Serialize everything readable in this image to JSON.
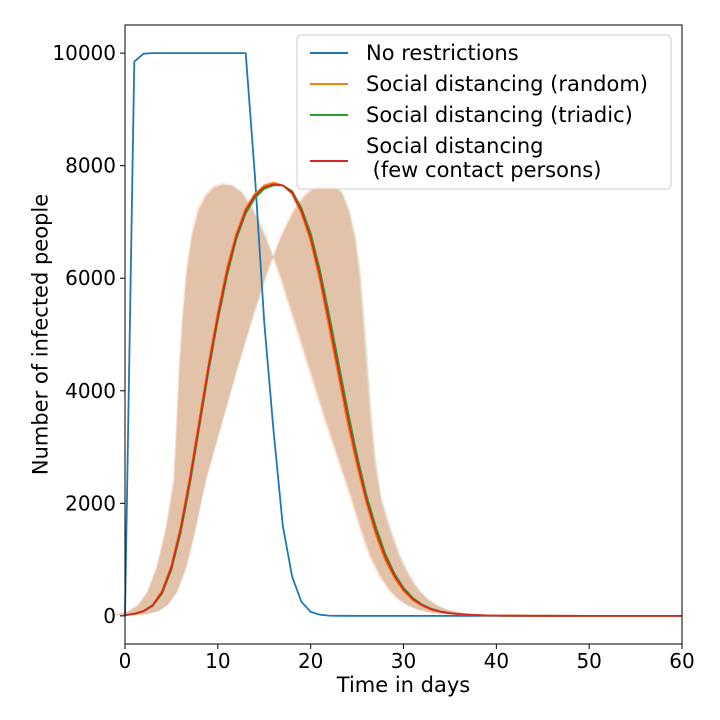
{
  "chart_data": {
    "type": "line",
    "title": "",
    "xlabel": "Time in days",
    "ylabel": "Number of infected people",
    "xlim": [
      0,
      60
    ],
    "ylim": [
      -500,
      10500
    ],
    "xticks": [
      0,
      10,
      20,
      30,
      40,
      50,
      60
    ],
    "yticks": [
      0,
      2000,
      4000,
      6000,
      8000,
      10000
    ],
    "grid": false,
    "legend_position": "top-right",
    "colors": {
      "no_restrictions": "#1f77b4",
      "random": "#ff7f0e",
      "triadic": "#2ca02c",
      "few_contacts": "#d62728"
    },
    "series": [
      {
        "name": "No restrictions",
        "color": "#1f77b4",
        "x": [
          0,
          1,
          2,
          3,
          4,
          5,
          6,
          7,
          8,
          9,
          10,
          11,
          12,
          13,
          14,
          15,
          16,
          17,
          18,
          19,
          20,
          21,
          22,
          23,
          24,
          25,
          30,
          40,
          50,
          60
        ],
        "values": [
          0,
          9850,
          9990,
          10000,
          10000,
          10000,
          10000,
          10000,
          10000,
          10000,
          10000,
          10000,
          10000,
          10000,
          7800,
          5200,
          3300,
          1600,
          700,
          250,
          70,
          20,
          5,
          2,
          1,
          0,
          0,
          0,
          0,
          0
        ]
      },
      {
        "name": "Social distancing (random)",
        "color": "#ff7f0e",
        "x": [
          0,
          1,
          2,
          3,
          4,
          5,
          6,
          7,
          8,
          9,
          10,
          11,
          12,
          13,
          14,
          15,
          16,
          17,
          18,
          19,
          20,
          21,
          22,
          23,
          24,
          25,
          26,
          27,
          28,
          29,
          30,
          31,
          32,
          33,
          34,
          35,
          36,
          37,
          38,
          39,
          40,
          42,
          44,
          46,
          50,
          55,
          60
        ],
        "values": [
          10,
          40,
          90,
          200,
          450,
          900,
          1600,
          2500,
          3500,
          4500,
          5400,
          6200,
          6800,
          7250,
          7500,
          7650,
          7700,
          7650,
          7500,
          7150,
          6650,
          5950,
          5100,
          4250,
          3400,
          2650,
          2000,
          1450,
          1000,
          680,
          440,
          280,
          180,
          110,
          70,
          45,
          30,
          18,
          12,
          8,
          5,
          3,
          2,
          1,
          0,
          0,
          0
        ]
      },
      {
        "name": "Social distancing (triadic)",
        "color": "#2ca02c",
        "x": [
          0,
          1,
          2,
          3,
          4,
          5,
          6,
          7,
          8,
          9,
          10,
          11,
          12,
          13,
          14,
          15,
          16,
          17,
          18,
          19,
          20,
          21,
          22,
          23,
          24,
          25,
          26,
          27,
          28,
          29,
          30,
          31,
          32,
          33,
          34,
          35,
          36,
          37,
          38,
          39,
          40,
          42,
          44,
          46,
          50,
          55,
          60
        ],
        "values": [
          10,
          35,
          80,
          180,
          400,
          820,
          1480,
          2350,
          3350,
          4350,
          5250,
          6050,
          6700,
          7150,
          7430,
          7590,
          7650,
          7650,
          7550,
          7250,
          6800,
          6150,
          5350,
          4500,
          3650,
          2850,
          2150,
          1600,
          1120,
          760,
          500,
          320,
          200,
          125,
          78,
          50,
          32,
          20,
          13,
          8,
          5,
          3,
          2,
          1,
          0,
          0,
          0
        ]
      },
      {
        "name": "Social distancing\n (few contact persons)",
        "color": "#d62728",
        "x": [
          0,
          1,
          2,
          3,
          4,
          5,
          6,
          7,
          8,
          9,
          10,
          11,
          12,
          13,
          14,
          15,
          16,
          17,
          18,
          19,
          20,
          21,
          22,
          23,
          24,
          25,
          26,
          27,
          28,
          29,
          30,
          31,
          32,
          33,
          34,
          35,
          36,
          37,
          38,
          39,
          40,
          42,
          44,
          46,
          50,
          55,
          60
        ],
        "values": [
          10,
          38,
          85,
          190,
          420,
          860,
          1540,
          2420,
          3420,
          4420,
          5320,
          6120,
          6750,
          7200,
          7470,
          7620,
          7670,
          7650,
          7520,
          7200,
          6720,
          6050,
          5220,
          4370,
          3520,
          2750,
          2070,
          1520,
          1060,
          720,
          470,
          300,
          190,
          118,
          74,
          47,
          31,
          19,
          12,
          8,
          5,
          3,
          2,
          1,
          0,
          0,
          0
        ]
      }
    ]
  },
  "legend": {
    "items": [
      {
        "label_lines": [
          "No restrictions"
        ],
        "color": "#1f77b4"
      },
      {
        "label_lines": [
          "Social distancing (random)"
        ],
        "color": "#ff7f0e"
      },
      {
        "label_lines": [
          "Social distancing (triadic)"
        ],
        "color": "#2ca02c"
      },
      {
        "label_lines": [
          "Social distancing",
          " (few contact persons)"
        ],
        "color": "#d62728"
      }
    ]
  }
}
